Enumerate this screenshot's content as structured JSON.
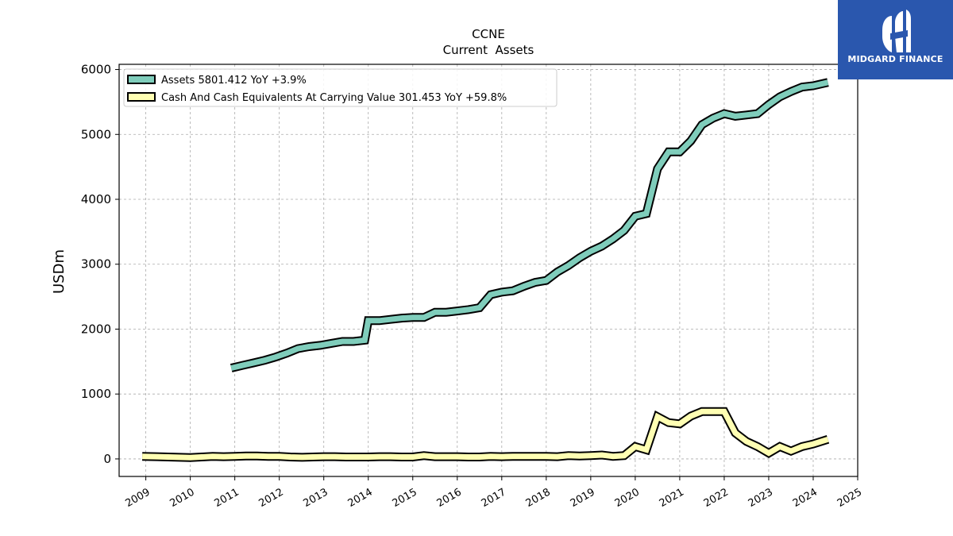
{
  "brand": {
    "name": "MIDGARD FINANCE",
    "color": "#2a57ae"
  },
  "chart_data": {
    "type": "line",
    "title": "CCNE",
    "subtitle": "Current  Assets",
    "ylabel": "USDm",
    "xlabel": "",
    "xlim": [
      2008.4,
      2025.0
    ],
    "ylim": [
      -270,
      6080
    ],
    "yticks": [
      0,
      1000,
      2000,
      3000,
      4000,
      5000,
      6000
    ],
    "xticks": [
      "2009",
      "2010",
      "2011",
      "2012",
      "2013",
      "2014",
      "2015",
      "2016",
      "2017",
      "2018",
      "2019",
      "2020",
      "2021",
      "2022",
      "2023",
      "2024",
      "2025"
    ],
    "grid": true,
    "legend_position": "top-left",
    "series": [
      {
        "name": "Assets  5801.412 YoY +3.9%",
        "color": "#7fcdbb",
        "points": [
          [
            2010.92,
            1400
          ],
          [
            2011.17,
            1440
          ],
          [
            2011.42,
            1480
          ],
          [
            2011.67,
            1520
          ],
          [
            2011.92,
            1570
          ],
          [
            2012.17,
            1630
          ],
          [
            2012.42,
            1700
          ],
          [
            2012.67,
            1730
          ],
          [
            2012.92,
            1750
          ],
          [
            2013.17,
            1780
          ],
          [
            2013.42,
            1810
          ],
          [
            2013.67,
            1810
          ],
          [
            2013.92,
            1830
          ],
          [
            2014.0,
            2130
          ],
          [
            2014.25,
            2130
          ],
          [
            2014.5,
            2150
          ],
          [
            2014.75,
            2170
          ],
          [
            2015.0,
            2180
          ],
          [
            2015.25,
            2180
          ],
          [
            2015.5,
            2260
          ],
          [
            2015.75,
            2260
          ],
          [
            2016.0,
            2280
          ],
          [
            2016.25,
            2300
          ],
          [
            2016.5,
            2330
          ],
          [
            2016.75,
            2530
          ],
          [
            2017.0,
            2570
          ],
          [
            2017.25,
            2590
          ],
          [
            2017.5,
            2660
          ],
          [
            2017.75,
            2720
          ],
          [
            2018.0,
            2750
          ],
          [
            2018.25,
            2880
          ],
          [
            2018.5,
            2980
          ],
          [
            2018.75,
            3100
          ],
          [
            2019.0,
            3200
          ],
          [
            2019.25,
            3280
          ],
          [
            2019.5,
            3390
          ],
          [
            2019.75,
            3520
          ],
          [
            2020.0,
            3740
          ],
          [
            2020.25,
            3780
          ],
          [
            2020.5,
            4470
          ],
          [
            2020.75,
            4730
          ],
          [
            2021.0,
            4730
          ],
          [
            2021.25,
            4900
          ],
          [
            2021.5,
            5150
          ],
          [
            2021.75,
            5250
          ],
          [
            2022.0,
            5320
          ],
          [
            2022.25,
            5280
          ],
          [
            2022.5,
            5300
          ],
          [
            2022.75,
            5320
          ],
          [
            2023.0,
            5460
          ],
          [
            2023.25,
            5580
          ],
          [
            2023.5,
            5660
          ],
          [
            2023.75,
            5730
          ],
          [
            2024.0,
            5750
          ],
          [
            2024.33,
            5801.412
          ]
        ]
      },
      {
        "name": "Cash And Cash Equivalents At Carrying Value  301.453 YoY +59.8%",
        "color": "#ffffb3",
        "points": [
          [
            2008.92,
            40
          ],
          [
            2009.25,
            35
          ],
          [
            2009.5,
            30
          ],
          [
            2009.75,
            25
          ],
          [
            2010.0,
            20
          ],
          [
            2010.25,
            30
          ],
          [
            2010.5,
            40
          ],
          [
            2010.75,
            35
          ],
          [
            2011.0,
            40
          ],
          [
            2011.25,
            45
          ],
          [
            2011.5,
            45
          ],
          [
            2011.75,
            40
          ],
          [
            2012.0,
            40
          ],
          [
            2012.25,
            30
          ],
          [
            2012.5,
            25
          ],
          [
            2012.75,
            30
          ],
          [
            2013.0,
            35
          ],
          [
            2013.25,
            35
          ],
          [
            2013.5,
            30
          ],
          [
            2013.75,
            30
          ],
          [
            2014.0,
            30
          ],
          [
            2014.25,
            35
          ],
          [
            2014.5,
            35
          ],
          [
            2014.75,
            30
          ],
          [
            2015.0,
            30
          ],
          [
            2015.25,
            50
          ],
          [
            2015.5,
            35
          ],
          [
            2015.75,
            35
          ],
          [
            2016.0,
            35
          ],
          [
            2016.25,
            30
          ],
          [
            2016.5,
            30
          ],
          [
            2016.75,
            40
          ],
          [
            2017.0,
            35
          ],
          [
            2017.25,
            40
          ],
          [
            2017.5,
            40
          ],
          [
            2017.75,
            40
          ],
          [
            2018.0,
            40
          ],
          [
            2018.25,
            35
          ],
          [
            2018.5,
            50
          ],
          [
            2018.75,
            45
          ],
          [
            2019.0,
            50
          ],
          [
            2019.25,
            60
          ],
          [
            2019.5,
            40
          ],
          [
            2019.75,
            50
          ],
          [
            2020.0,
            190
          ],
          [
            2020.25,
            140
          ],
          [
            2020.5,
            650
          ],
          [
            2020.75,
            560
          ],
          [
            2021.0,
            540
          ],
          [
            2021.25,
            660
          ],
          [
            2021.5,
            730
          ],
          [
            2021.75,
            730
          ],
          [
            2022.0,
            730
          ],
          [
            2022.25,
            400
          ],
          [
            2022.5,
            270
          ],
          [
            2022.75,
            190
          ],
          [
            2023.0,
            90
          ],
          [
            2023.25,
            190
          ],
          [
            2023.5,
            120
          ],
          [
            2023.75,
            190
          ],
          [
            2024.0,
            230
          ],
          [
            2024.33,
            301.453
          ]
        ]
      }
    ]
  }
}
